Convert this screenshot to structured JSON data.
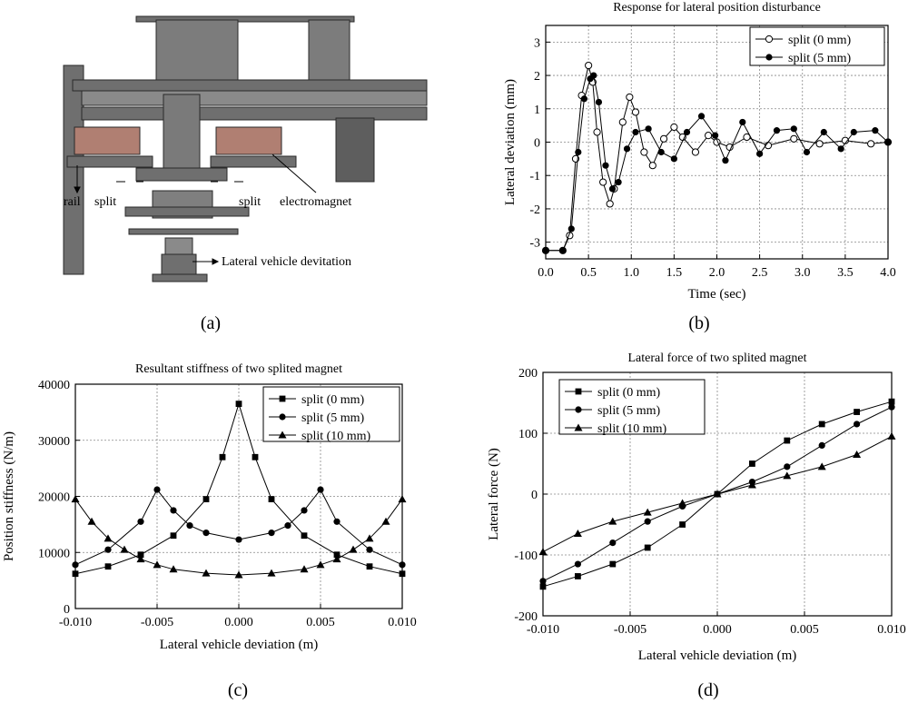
{
  "panel_labels": [
    "(a)",
    "(b)",
    "(c)",
    "(d)"
  ],
  "diagram": {
    "labels": {
      "rail": "rail",
      "split_left": "split",
      "split_right": "split",
      "electromagnet": "electromagnet",
      "deviation": "Lateral vehicle devitation"
    }
  },
  "chart_data": [
    {
      "id": "b",
      "type": "line",
      "title": "Response for lateral  position disturbance",
      "xlabel": "Time (sec)",
      "ylabel": "Lateral deviation (mm)",
      "xlim": [
        0,
        4
      ],
      "ylim": [
        -3.5,
        3.5
      ],
      "xticks": [
        "0.0",
        "0.5",
        "1.0",
        "1.5",
        "2.0",
        "2.5",
        "3.0",
        "3.5",
        "4.0"
      ],
      "yticks": [
        "-3",
        "-2",
        "-1",
        "0",
        "1",
        "2",
        "3"
      ],
      "grid": true,
      "legend_position": "top-right",
      "series": [
        {
          "name": "split (0 mm)",
          "marker": "open-circle",
          "x": [
            0.0,
            0.2,
            0.28,
            0.35,
            0.42,
            0.5,
            0.55,
            0.6,
            0.67,
            0.75,
            0.8,
            0.9,
            0.98,
            1.05,
            1.15,
            1.25,
            1.38,
            1.5,
            1.6,
            1.75,
            1.9,
            2.0,
            2.15,
            2.35,
            2.6,
            2.9,
            3.2,
            3.5,
            3.8,
            4.0
          ],
          "y": [
            -3.25,
            -3.25,
            -2.8,
            -0.5,
            1.4,
            2.3,
            1.8,
            0.3,
            -1.2,
            -1.85,
            -1.4,
            0.6,
            1.35,
            0.9,
            -0.3,
            -0.7,
            0.1,
            0.45,
            0.15,
            -0.3,
            0.2,
            0.0,
            -0.15,
            0.15,
            -0.1,
            0.1,
            -0.05,
            0.05,
            -0.05,
            0.0
          ]
        },
        {
          "name": "split (5 mm)",
          "marker": "filled-circle",
          "x": [
            0.0,
            0.2,
            0.3,
            0.38,
            0.45,
            0.52,
            0.56,
            0.62,
            0.7,
            0.78,
            0.85,
            0.95,
            1.05,
            1.2,
            1.35,
            1.5,
            1.65,
            1.82,
            1.98,
            2.1,
            2.3,
            2.5,
            2.7,
            2.9,
            3.05,
            3.25,
            3.45,
            3.6,
            3.85,
            4.0
          ],
          "y": [
            -3.25,
            -3.25,
            -2.6,
            -0.3,
            1.3,
            1.9,
            2.0,
            1.2,
            -0.7,
            -1.4,
            -1.2,
            -0.2,
            0.3,
            0.4,
            -0.3,
            -0.5,
            0.3,
            0.78,
            0.2,
            -0.55,
            0.6,
            -0.35,
            0.35,
            0.4,
            -0.3,
            0.3,
            -0.2,
            0.3,
            0.35,
            0.0
          ]
        }
      ]
    },
    {
      "id": "c",
      "type": "line",
      "title": "Resultant stiffness of two splited magnet",
      "xlabel": "Lateral vehicle deviation (m)",
      "ylabel": "Position stiffness (N/m)",
      "xlim": [
        -0.01,
        0.01
      ],
      "ylim": [
        0,
        40000
      ],
      "xticks": [
        "-0.010",
        "-0.005",
        "0.000",
        "0.005",
        "0.010"
      ],
      "yticks": [
        "0",
        "10000",
        "20000",
        "30000",
        "40000"
      ],
      "grid": true,
      "legend_position": "top-right",
      "series": [
        {
          "name": "split (0 mm)",
          "marker": "square",
          "x": [
            -0.01,
            -0.008,
            -0.006,
            -0.004,
            -0.002,
            -0.001,
            0.0,
            0.001,
            0.002,
            0.004,
            0.006,
            0.008,
            0.01
          ],
          "y": [
            6200,
            7500,
            9600,
            13000,
            19500,
            27000,
            36500,
            27000,
            19500,
            13000,
            9600,
            7500,
            6200
          ]
        },
        {
          "name": "split (5 mm)",
          "marker": "circle",
          "x": [
            -0.01,
            -0.008,
            -0.006,
            -0.005,
            -0.004,
            -0.003,
            -0.002,
            0.0,
            0.002,
            0.003,
            0.004,
            0.005,
            0.006,
            0.008,
            0.01
          ],
          "y": [
            7800,
            10500,
            15500,
            21200,
            17500,
            14800,
            13500,
            12300,
            13500,
            14800,
            17500,
            21200,
            15500,
            10500,
            7800
          ]
        },
        {
          "name": "split (10 mm)",
          "marker": "triangle",
          "x": [
            -0.01,
            -0.009,
            -0.008,
            -0.007,
            -0.006,
            -0.005,
            -0.004,
            -0.002,
            0.0,
            0.002,
            0.004,
            0.005,
            0.006,
            0.007,
            0.008,
            0.009,
            0.01
          ],
          "y": [
            19500,
            15500,
            12500,
            10500,
            8800,
            7800,
            7000,
            6300,
            6000,
            6300,
            7000,
            7800,
            8800,
            10500,
            12500,
            15500,
            19500
          ]
        }
      ]
    },
    {
      "id": "d",
      "type": "line",
      "title": "Lateral force of two splited magnet",
      "xlabel": "Lateral vehicle deviation (m)",
      "ylabel": "Lateral force (N)",
      "xlim": [
        -0.01,
        0.01
      ],
      "ylim": [
        -200,
        200
      ],
      "xticks": [
        "-0.010",
        "-0.005",
        "0.000",
        "0.005",
        "0.010"
      ],
      "yticks": [
        "-200",
        "-100",
        "0",
        "100",
        "200"
      ],
      "grid": true,
      "legend_position": "top-left",
      "series": [
        {
          "name": "split (0 mm)",
          "marker": "square",
          "x": [
            -0.01,
            -0.008,
            -0.006,
            -0.004,
            -0.002,
            0.0,
            0.002,
            0.004,
            0.006,
            0.008,
            0.01
          ],
          "y": [
            -152,
            -135,
            -115,
            -88,
            -50,
            0,
            50,
            88,
            115,
            135,
            152
          ]
        },
        {
          "name": "split (5 mm)",
          "marker": "circle",
          "x": [
            -0.01,
            -0.008,
            -0.006,
            -0.004,
            -0.002,
            0.0,
            0.002,
            0.004,
            0.006,
            0.008,
            0.01
          ],
          "y": [
            -143,
            -115,
            -80,
            -45,
            -20,
            0,
            20,
            45,
            80,
            115,
            143
          ]
        },
        {
          "name": "split (10 mm)",
          "marker": "triangle",
          "x": [
            -0.01,
            -0.008,
            -0.006,
            -0.004,
            -0.002,
            0.0,
            0.002,
            0.004,
            0.006,
            0.008,
            0.01
          ],
          "y": [
            -95,
            -65,
            -45,
            -30,
            -15,
            0,
            15,
            30,
            45,
            65,
            95
          ]
        }
      ]
    }
  ]
}
